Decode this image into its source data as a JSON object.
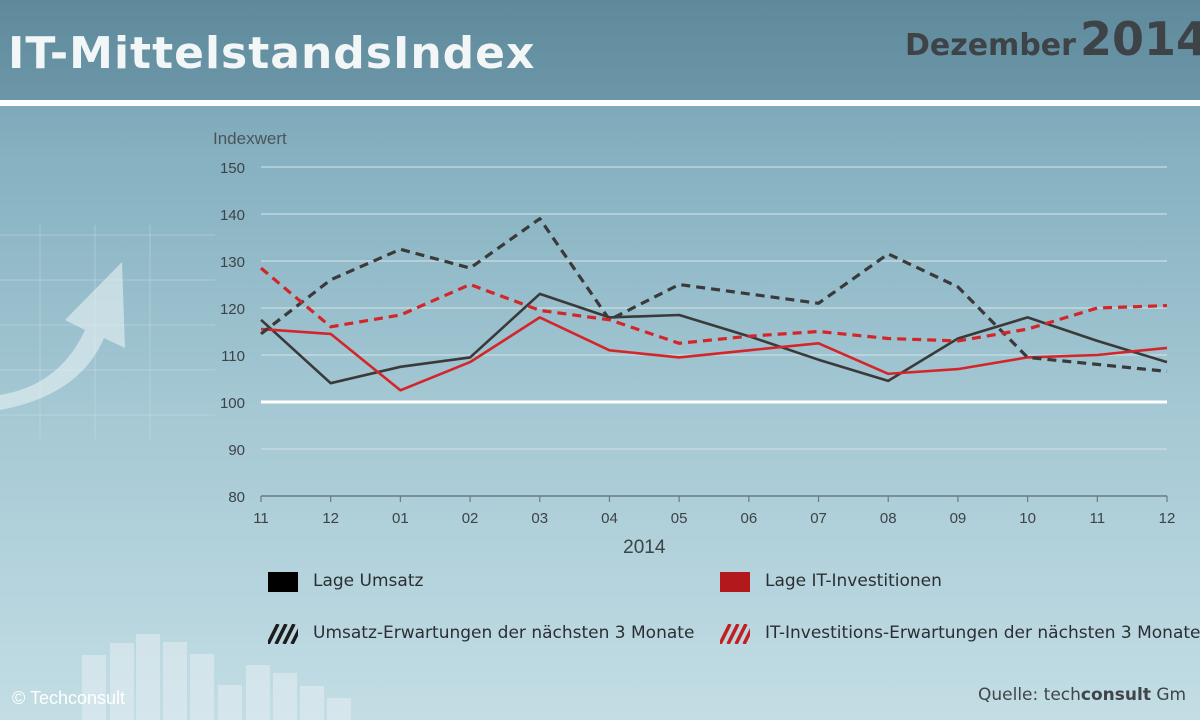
{
  "header": {
    "title": "IT-MittelstandsIndex",
    "month": "Dezember",
    "year": "2014"
  },
  "colors": {
    "black_series": "#3a3a3a",
    "red_series": "#d3262a",
    "reference_line": "#ffffff",
    "grid": "#c9dde3",
    "axis_text": "#3d4347"
  },
  "chart_data": {
    "type": "line",
    "ylabel": "Indexwert",
    "xlabel": "2014",
    "x": [
      "11",
      "12",
      "01",
      "02",
      "03",
      "04",
      "05",
      "06",
      "07",
      "08",
      "09",
      "10",
      "11",
      "12"
    ],
    "ylim": [
      80,
      150
    ],
    "yticks": [
      80,
      90,
      100,
      110,
      120,
      130,
      140,
      150
    ],
    "reference_line": 100,
    "grid": true,
    "legend_position": "bottom",
    "series": [
      {
        "name": "Lage Umsatz",
        "color": "#3a3a3a",
        "style": "solid",
        "values": [
          117.5,
          104,
          107.5,
          109.5,
          123,
          118,
          118.5,
          114,
          109,
          104.5,
          113.5,
          118,
          113,
          108.5
        ]
      },
      {
        "name": "Lage IT-Investitionen",
        "color": "#d3262a",
        "style": "solid",
        "values": [
          115.5,
          114.5,
          102.5,
          108.5,
          118,
          111,
          109.5,
          111,
          112.5,
          106,
          107,
          109.5,
          110,
          111.5
        ]
      },
      {
        "name": "Umsatz-Erwartungen der nächsten 3 Monate",
        "color": "#3a3a3a",
        "style": "dashed",
        "values": [
          114.5,
          126,
          132.5,
          128.5,
          139,
          117.5,
          125,
          123,
          121,
          131.5,
          124.5,
          109.5,
          108,
          106.5
        ]
      },
      {
        "name": "IT-Investitions-Erwartungen der nächsten 3 Monate",
        "color": "#d3262a",
        "style": "dashed",
        "values": [
          128.5,
          116,
          118.5,
          125,
          119.5,
          117.5,
          112.5,
          114,
          115,
          113.5,
          113,
          115.5,
          120,
          120.5
        ]
      }
    ]
  },
  "footer": {
    "copyright": "© Techconsult",
    "source_prefix": "Quelle: tech",
    "source_bold": "consult",
    "source_suffix": " Gm"
  }
}
